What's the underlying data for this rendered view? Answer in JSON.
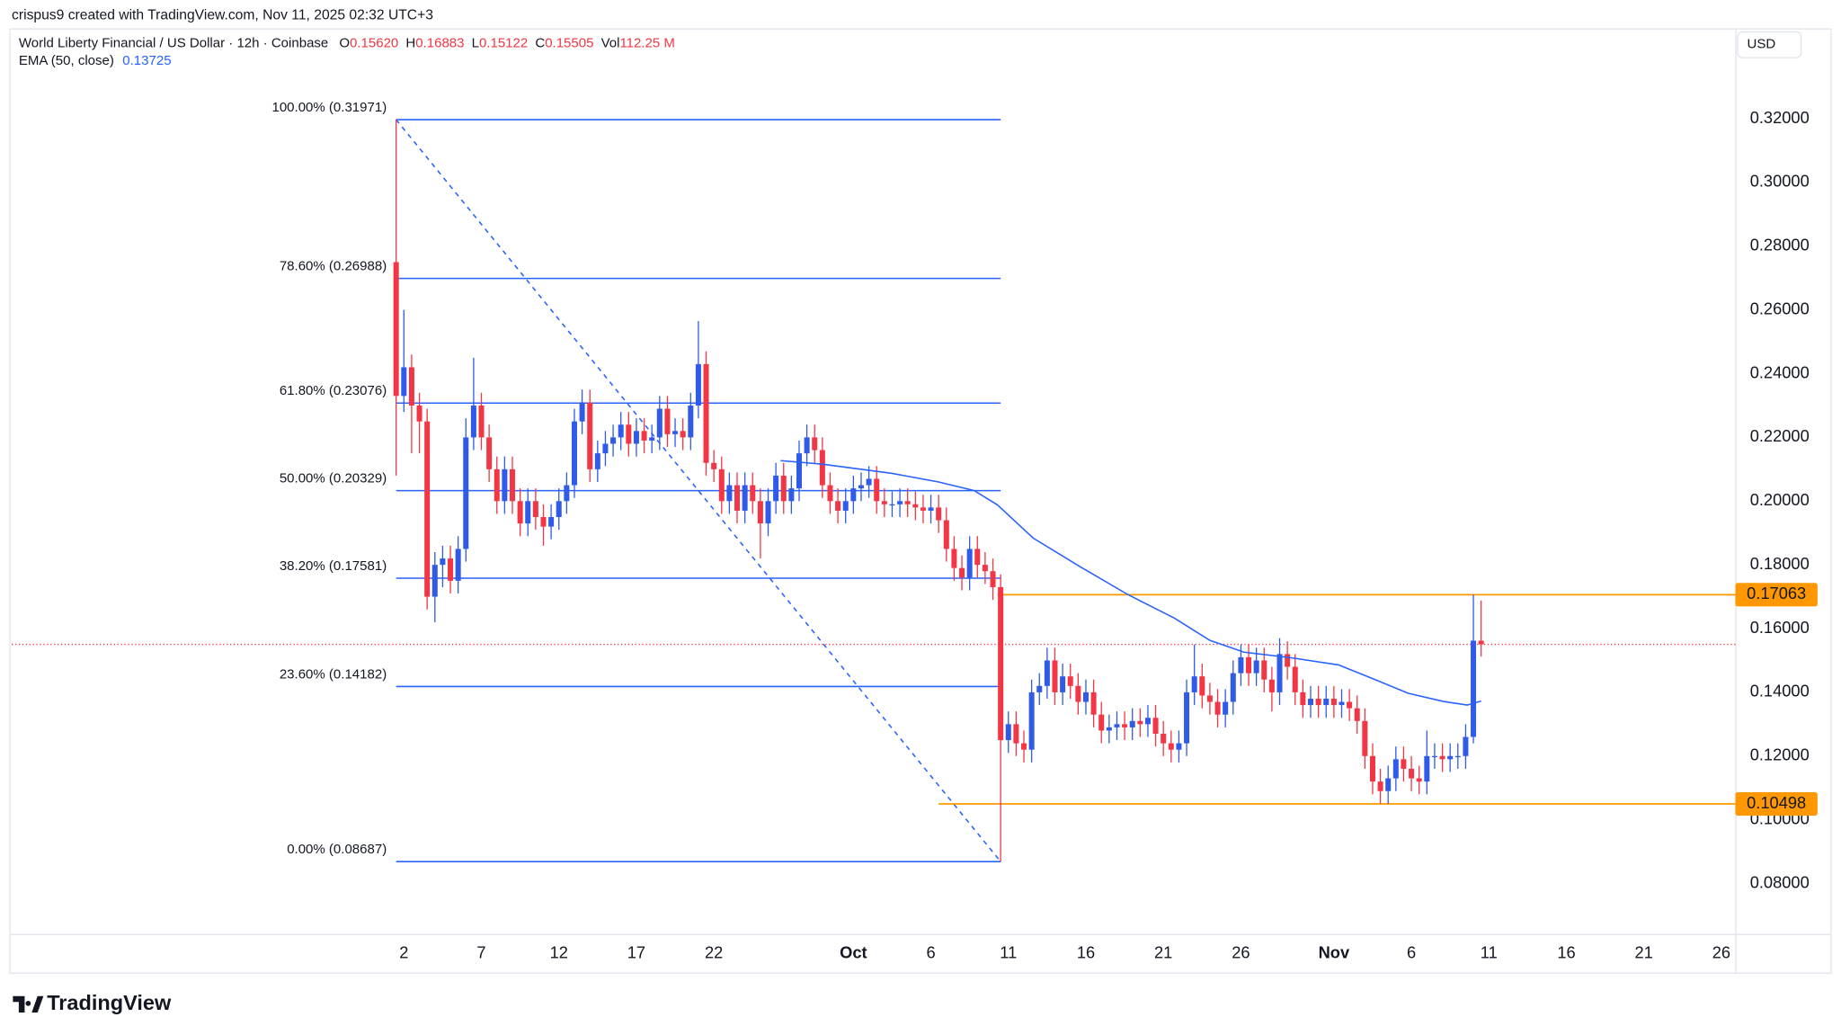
{
  "chart_data": {
    "type": "candlestick",
    "credit": "crispus9 created with TradingView.com, Nov 11, 2025 02:32 UTC+3",
    "title": "World Liberty Financial / US Dollar · 12h · Coinbase",
    "ohlcv": [
      {
        "label": "O",
        "value": "0.15620"
      },
      {
        "label": "H",
        "value": "0.16883"
      },
      {
        "label": "L",
        "value": "0.15122"
      },
      {
        "label": "C",
        "value": "0.15505"
      },
      {
        "label": "Vol",
        "value": "112.25 M"
      }
    ],
    "indicator": "EMA (50, close)",
    "indicator_value": "0.13725",
    "currency": "USD",
    "logo": "TradingView",
    "up_color": "#2f5be8",
    "down_color": "#f23645",
    "x": [
      1.5,
      2,
      2.5,
      3,
      3.5,
      4,
      4.5,
      5,
      5.5,
      6,
      6.5,
      7,
      7.5,
      8,
      8.5,
      9,
      9.5,
      10,
      10.5,
      11,
      11.5,
      12,
      12.5,
      13,
      13.5,
      14,
      14.5,
      15,
      15.5,
      16,
      16.5,
      17,
      17.5,
      18,
      18.5,
      19,
      19.5,
      20,
      20.5,
      21,
      21.5,
      22,
      22.5,
      23,
      23.5,
      24,
      24.5,
      25,
      25.5,
      26,
      26.5,
      27,
      27.5,
      28,
      28.5,
      29,
      29.5,
      30,
      30.5,
      31,
      31.5,
      32,
      32.5,
      33,
      33.5,
      34,
      34.5,
      35,
      35.5,
      36,
      36.5,
      37,
      37.5,
      38,
      38.5,
      39,
      39.5,
      40,
      40.5,
      41,
      41.5,
      42,
      42.5,
      43,
      43.5,
      44,
      44.5,
      45,
      45.5,
      46,
      46.5,
      47,
      47.5,
      48,
      48.5,
      49,
      49.5,
      50,
      50.5,
      51,
      51.5,
      52,
      52.5,
      53,
      53.5,
      54,
      54.5,
      55,
      55.5,
      56,
      56.5,
      57,
      57.5,
      58,
      58.5,
      59,
      59.5,
      60,
      60.5,
      61,
      61.5,
      62,
      62.5,
      63,
      63.5,
      64,
      64.5,
      65,
      65.5,
      66,
      66.5,
      67,
      67.5,
      68,
      68.5,
      69,
      69.5,
      70,
      70.5,
      71,
      71.5
    ],
    "open": [
      0.275,
      0.233,
      0.242,
      0.23,
      0.225,
      0.17,
      0.18,
      0.182,
      0.175,
      0.185,
      0.22,
      0.23,
      0.22,
      0.21,
      0.2,
      0.21,
      0.2,
      0.193,
      0.2,
      0.195,
      0.192,
      0.195,
      0.2,
      0.205,
      0.225,
      0.231,
      0.21,
      0.215,
      0.218,
      0.22,
      0.224,
      0.218,
      0.222,
      0.219,
      0.22,
      0.229,
      0.221,
      0.222,
      0.22,
      0.23,
      0.243,
      0.212,
      0.21,
      0.2,
      0.205,
      0.197,
      0.205,
      0.2,
      0.193,
      0.2,
      0.208,
      0.2,
      0.204,
      0.215,
      0.22,
      0.216,
      0.205,
      0.2,
      0.197,
      0.2,
      0.204,
      0.205,
      0.207,
      0.2,
      0.199,
      0.199,
      0.2,
      0.199,
      0.198,
      0.197,
      0.198,
      0.194,
      0.185,
      0.179,
      0.176,
      0.185,
      0.18,
      0.178,
      0.173,
      0.125,
      0.13,
      0.124,
      0.122,
      0.14,
      0.142,
      0.15,
      0.14,
      0.145,
      0.142,
      0.137,
      0.14,
      0.133,
      0.128,
      0.129,
      0.13,
      0.129,
      0.131,
      0.13,
      0.132,
      0.127,
      0.124,
      0.122,
      0.124,
      0.14,
      0.145,
      0.139,
      0.137,
      0.133,
      0.137,
      0.146,
      0.151,
      0.146,
      0.15,
      0.144,
      0.14,
      0.152,
      0.148,
      0.14,
      0.136,
      0.138,
      0.136,
      0.138,
      0.136,
      0.137,
      0.135,
      0.131,
      0.12,
      0.112,
      0.109,
      0.113,
      0.119,
      0.116,
      0.113,
      0.112,
      0.12,
      0.12,
      0.119,
      0.12,
      0.12,
      0.126,
      0.1562
    ],
    "high": [
      0.31971,
      0.26,
      0.246,
      0.234,
      0.229,
      0.184,
      0.186,
      0.186,
      0.189,
      0.226,
      0.245,
      0.234,
      0.224,
      0.214,
      0.214,
      0.214,
      0.204,
      0.204,
      0.204,
      0.199,
      0.199,
      0.204,
      0.209,
      0.229,
      0.235,
      0.235,
      0.219,
      0.222,
      0.224,
      0.228,
      0.228,
      0.226,
      0.226,
      0.224,
      0.233,
      0.233,
      0.226,
      0.226,
      0.234,
      0.2565,
      0.247,
      0.216,
      0.214,
      0.209,
      0.209,
      0.209,
      0.209,
      0.204,
      0.204,
      0.212,
      0.212,
      0.208,
      0.219,
      0.224,
      0.224,
      0.22,
      0.209,
      0.204,
      0.204,
      0.208,
      0.209,
      0.211,
      0.211,
      0.204,
      0.203,
      0.204,
      0.204,
      0.203,
      0.202,
      0.202,
      0.202,
      0.198,
      0.189,
      0.183,
      0.189,
      0.189,
      0.184,
      0.182,
      0.177,
      0.134,
      0.134,
      0.128,
      0.144,
      0.146,
      0.154,
      0.154,
      0.149,
      0.149,
      0.146,
      0.144,
      0.144,
      0.137,
      0.133,
      0.134,
      0.134,
      0.135,
      0.135,
      0.136,
      0.136,
      0.131,
      0.128,
      0.128,
      0.144,
      0.155,
      0.149,
      0.143,
      0.141,
      0.141,
      0.15,
      0.155,
      0.155,
      0.154,
      0.154,
      0.148,
      0.157,
      0.156,
      0.152,
      0.144,
      0.142,
      0.142,
      0.142,
      0.142,
      0.141,
      0.141,
      0.139,
      0.135,
      0.124,
      0.116,
      0.117,
      0.123,
      0.123,
      0.12,
      0.117,
      0.128,
      0.124,
      0.124,
      0.124,
      0.124,
      0.13,
      0.17063,
      0.16883
    ],
    "low": [
      0.208,
      0.228,
      0.215,
      0.215,
      0.166,
      0.162,
      0.173,
      0.171,
      0.171,
      0.181,
      0.216,
      0.216,
      0.206,
      0.196,
      0.196,
      0.196,
      0.189,
      0.189,
      0.191,
      0.186,
      0.188,
      0.191,
      0.196,
      0.201,
      0.221,
      0.206,
      0.206,
      0.211,
      0.214,
      0.216,
      0.214,
      0.214,
      0.215,
      0.215,
      0.216,
      0.217,
      0.217,
      0.216,
      0.216,
      0.226,
      0.208,
      0.206,
      0.196,
      0.196,
      0.193,
      0.193,
      0.196,
      0.182,
      0.189,
      0.196,
      0.196,
      0.196,
      0.2,
      0.211,
      0.212,
      0.201,
      0.196,
      0.193,
      0.193,
      0.196,
      0.2,
      0.201,
      0.196,
      0.195,
      0.195,
      0.195,
      0.195,
      0.194,
      0.193,
      0.193,
      0.19,
      0.181,
      0.175,
      0.172,
      0.172,
      0.176,
      0.174,
      0.169,
      0.08687,
      0.121,
      0.12,
      0.118,
      0.118,
      0.136,
      0.138,
      0.136,
      0.136,
      0.138,
      0.133,
      0.133,
      0.129,
      0.124,
      0.124,
      0.125,
      0.125,
      0.125,
      0.126,
      0.126,
      0.123,
      0.12,
      0.118,
      0.118,
      0.12,
      0.136,
      0.135,
      0.133,
      0.129,
      0.129,
      0.133,
      0.142,
      0.142,
      0.142,
      0.14,
      0.134,
      0.136,
      0.144,
      0.136,
      0.132,
      0.132,
      0.132,
      0.132,
      0.132,
      0.132,
      0.131,
      0.127,
      0.116,
      0.108,
      0.105,
      0.105,
      0.109,
      0.112,
      0.109,
      0.108,
      0.108,
      0.116,
      0.115,
      0.115,
      0.116,
      0.116,
      0.124,
      0.15122
    ],
    "close": [
      0.233,
      0.242,
      0.23,
      0.225,
      0.17,
      0.18,
      0.182,
      0.175,
      0.185,
      0.22,
      0.23,
      0.22,
      0.21,
      0.2,
      0.21,
      0.2,
      0.193,
      0.2,
      0.195,
      0.192,
      0.195,
      0.2,
      0.205,
      0.225,
      0.231,
      0.21,
      0.215,
      0.218,
      0.22,
      0.224,
      0.218,
      0.222,
      0.219,
      0.22,
      0.229,
      0.221,
      0.222,
      0.22,
      0.23,
      0.243,
      0.212,
      0.21,
      0.2,
      0.205,
      0.197,
      0.205,
      0.2,
      0.193,
      0.2,
      0.208,
      0.2,
      0.204,
      0.215,
      0.22,
      0.216,
      0.205,
      0.2,
      0.197,
      0.2,
      0.204,
      0.205,
      0.207,
      0.2,
      0.199,
      0.199,
      0.2,
      0.199,
      0.198,
      0.197,
      0.198,
      0.194,
      0.185,
      0.179,
      0.176,
      0.185,
      0.18,
      0.178,
      0.173,
      0.125,
      0.13,
      0.124,
      0.122,
      0.14,
      0.142,
      0.15,
      0.14,
      0.145,
      0.142,
      0.137,
      0.14,
      0.133,
      0.128,
      0.129,
      0.13,
      0.129,
      0.131,
      0.13,
      0.132,
      0.127,
      0.124,
      0.122,
      0.124,
      0.14,
      0.145,
      0.139,
      0.137,
      0.133,
      0.137,
      0.146,
      0.151,
      0.146,
      0.15,
      0.144,
      0.14,
      0.152,
      0.148,
      0.14,
      0.136,
      0.138,
      0.136,
      0.138,
      0.136,
      0.137,
      0.135,
      0.131,
      0.12,
      0.112,
      0.109,
      0.113,
      0.119,
      0.116,
      0.113,
      0.112,
      0.12,
      0.12,
      0.119,
      0.12,
      0.12,
      0.126,
      0.1562,
      0.15505
    ],
    "ema": {
      "color": "#2962ff",
      "x": [
        26.3,
        29,
        33.5,
        36.5,
        38.8,
        40.3,
        42.6,
        45.6,
        48.7,
        51.7,
        54,
        56.2,
        59.3,
        62.3,
        64.6,
        66.8,
        69.1,
        70.6,
        71.5
      ],
      "values": [
        0.2127,
        0.2116,
        0.2087,
        0.206,
        0.2033,
        0.1988,
        0.1884,
        0.1795,
        0.1707,
        0.1633,
        0.1563,
        0.1526,
        0.1508,
        0.1486,
        0.1441,
        0.1397,
        0.1371,
        0.136,
        0.13725
      ]
    },
    "fib_color": "#2962ff",
    "fib_x": [
      1.5,
      40.5
    ],
    "fib_levels": [
      {
        "label": "100.00% (0.31971)",
        "value": 0.31971
      },
      {
        "label": "78.60% (0.26988)",
        "value": 0.26988
      },
      {
        "label": "61.80% (0.23076)",
        "value": 0.23076
      },
      {
        "label": "50.00% (0.20329)",
        "value": 0.20329
      },
      {
        "label": "38.20% (0.17581)",
        "value": 0.17581
      },
      {
        "label": "23.60% (0.14182)",
        "value": 0.14182
      },
      {
        "label": "0.00% (0.08687)",
        "value": 0.08687
      }
    ],
    "levels": [
      {
        "value": 0.17063,
        "label": "0.17063",
        "from": 40.3,
        "color": "#ff9800"
      },
      {
        "value": 0.10498,
        "label": "0.10498",
        "from": 36.5,
        "color": "#ff9800"
      }
    ],
    "last_price": 0.15505,
    "xlim": [
      -23.3,
      87.9
    ],
    "xticks": [
      2,
      7,
      12,
      17,
      22,
      {
        "value": 31,
        "label": "Oct"
      },
      {
        "value": 36,
        "label": "6"
      },
      {
        "value": 41,
        "label": "11"
      },
      {
        "value": 46,
        "label": "16"
      },
      {
        "value": 51,
        "label": "21"
      },
      {
        "value": 56,
        "label": "26"
      },
      {
        "value": 62,
        "label": "Nov"
      },
      {
        "value": 67,
        "label": "6"
      },
      {
        "value": 72,
        "label": "11"
      },
      {
        "value": 77,
        "label": "16"
      },
      {
        "value": 82,
        "label": "21"
      },
      {
        "value": 87,
        "label": "26"
      }
    ],
    "ylim": [
      0.0642,
      0.348
    ],
    "yticks": [
      {
        "value": 0.08,
        "label": "0.08000"
      },
      {
        "value": 0.1,
        "label": "0.10000"
      },
      {
        "value": 0.12,
        "label": "0.12000"
      },
      {
        "value": 0.14,
        "label": "0.14000"
      },
      {
        "value": 0.16,
        "label": "0.16000"
      },
      {
        "value": 0.18,
        "label": "0.18000"
      },
      {
        "value": 0.2,
        "label": "0.20000"
      },
      {
        "value": 0.22,
        "label": "0.22000"
      },
      {
        "value": 0.24,
        "label": "0.24000"
      },
      {
        "value": 0.26,
        "label": "0.26000"
      },
      {
        "value": 0.28,
        "label": "0.28000"
      },
      {
        "value": 0.3,
        "label": "0.30000"
      },
      {
        "value": 0.32,
        "label": "0.32000"
      }
    ],
    "grid": false
  }
}
